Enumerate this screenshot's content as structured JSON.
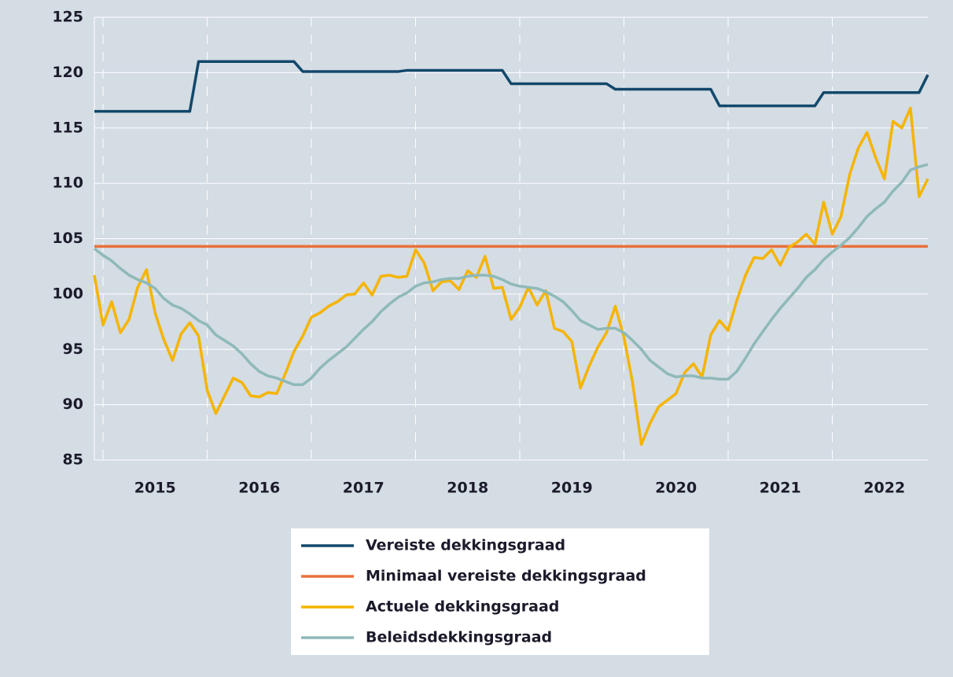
{
  "chart_data": {
    "type": "line",
    "x": [
      2014.917,
      2015,
      2015.083,
      2015.167,
      2015.25,
      2015.333,
      2015.417,
      2015.5,
      2015.583,
      2015.667,
      2015.75,
      2015.833,
      2015.917,
      2016,
      2016.083,
      2016.167,
      2016.25,
      2016.333,
      2016.417,
      2016.5,
      2016.583,
      2016.667,
      2016.75,
      2016.833,
      2016.917,
      2017,
      2017.083,
      2017.167,
      2017.25,
      2017.333,
      2017.417,
      2017.5,
      2017.583,
      2017.667,
      2017.75,
      2017.833,
      2017.917,
      2018,
      2018.083,
      2018.167,
      2018.25,
      2018.333,
      2018.417,
      2018.5,
      2018.583,
      2018.667,
      2018.75,
      2018.833,
      2018.917,
      2019,
      2019.083,
      2019.167,
      2019.25,
      2019.333,
      2019.417,
      2019.5,
      2019.583,
      2019.667,
      2019.75,
      2019.833,
      2019.917,
      2020,
      2020.083,
      2020.167,
      2020.25,
      2020.333,
      2020.417,
      2020.5,
      2020.583,
      2020.667,
      2020.75,
      2020.833,
      2020.917,
      2021,
      2021.083,
      2021.167,
      2021.25,
      2021.333,
      2021.417,
      2021.5,
      2021.583,
      2021.667,
      2021.75,
      2021.833,
      2021.917,
      2022,
      2022.083,
      2022.167,
      2022.25,
      2022.333,
      2022.417,
      2022.5,
      2022.583,
      2022.667,
      2022.75,
      2022.833,
      2022.917
    ],
    "series": [
      {
        "name": "Vereiste dekkingsgraad",
        "color": "#12486b",
        "values": [
          116.5,
          116.5,
          116.5,
          116.5,
          116.5,
          116.5,
          116.5,
          116.5,
          116.5,
          116.5,
          116.5,
          116.5,
          121,
          121,
          121,
          121,
          121,
          121,
          121,
          121,
          121,
          121,
          121,
          121,
          120.1,
          120.1,
          120.1,
          120.1,
          120.1,
          120.1,
          120.1,
          120.1,
          120.1,
          120.1,
          120.1,
          120.1,
          120.2,
          120.2,
          120.2,
          120.2,
          120.2,
          120.2,
          120.2,
          120.2,
          120.2,
          120.2,
          120.2,
          120.2,
          119,
          119,
          119,
          119,
          119,
          119,
          119,
          119,
          119,
          119,
          119,
          119,
          118.5,
          118.5,
          118.5,
          118.5,
          118.5,
          118.5,
          118.5,
          118.5,
          118.5,
          118.5,
          118.5,
          118.5,
          117,
          117,
          117,
          117,
          117,
          117,
          117,
          117,
          117,
          117,
          117,
          117,
          118.2,
          118.2,
          118.2,
          118.2,
          118.2,
          118.2,
          118.2,
          118.2,
          118.2,
          118.2,
          118.2,
          118.2,
          119.8
        ]
      },
      {
        "name": "Minimaal vereiste dekkingsgraad",
        "color": "#e8703a",
        "values": [
          104.3,
          104.3,
          104.3,
          104.3,
          104.3,
          104.3,
          104.3,
          104.3,
          104.3,
          104.3,
          104.3,
          104.3,
          104.3,
          104.3,
          104.3,
          104.3,
          104.3,
          104.3,
          104.3,
          104.3,
          104.3,
          104.3,
          104.3,
          104.3,
          104.3,
          104.3,
          104.3,
          104.3,
          104.3,
          104.3,
          104.3,
          104.3,
          104.3,
          104.3,
          104.3,
          104.3,
          104.3,
          104.3,
          104.3,
          104.3,
          104.3,
          104.3,
          104.3,
          104.3,
          104.3,
          104.3,
          104.3,
          104.3,
          104.3,
          104.3,
          104.3,
          104.3,
          104.3,
          104.3,
          104.3,
          104.3,
          104.3,
          104.3,
          104.3,
          104.3,
          104.3,
          104.3,
          104.3,
          104.3,
          104.3,
          104.3,
          104.3,
          104.3,
          104.3,
          104.3,
          104.3,
          104.3,
          104.3,
          104.3,
          104.3,
          104.3,
          104.3,
          104.3,
          104.3,
          104.3,
          104.3,
          104.3,
          104.3,
          104.3,
          104.3,
          104.3,
          104.3,
          104.3,
          104.3,
          104.3,
          104.3,
          104.3,
          104.3,
          104.3,
          104.3,
          104.3,
          104.3
        ]
      },
      {
        "name": "Actuele dekkingsgraad",
        "color": "#f5b400",
        "values": [
          101.7,
          97.2,
          99.3,
          96.5,
          97.7,
          100.6,
          102.2,
          98.3,
          95.9,
          94.0,
          96.4,
          97.4,
          96.2,
          91.3,
          89.2,
          90.8,
          92.4,
          92.0,
          90.8,
          90.7,
          91.1,
          91.0,
          92.8,
          94.8,
          96.2,
          97.9,
          98.3,
          98.9,
          99.3,
          99.9,
          100.0,
          101.0,
          99.9,
          101.6,
          101.7,
          101.5,
          101.6,
          104.0,
          102.8,
          100.3,
          101.1,
          101.2,
          100.4,
          102.1,
          101.5,
          103.4,
          100.5,
          100.6,
          97.7,
          98.8,
          100.6,
          99.0,
          100.3,
          96.9,
          96.6,
          95.7,
          91.5,
          93.5,
          95.2,
          96.5,
          98.9,
          96.1,
          92.0,
          86.4,
          88.3,
          89.8,
          90.4,
          91.0,
          92.9,
          93.7,
          92.5,
          96.3,
          97.6,
          96.7,
          99.4,
          101.7,
          103.3,
          103.2,
          104.0,
          102.6,
          104.2,
          104.7,
          105.4,
          104.5,
          108.3,
          105.4,
          107.0,
          110.8,
          113.2,
          114.6,
          112.3,
          110.4,
          115.6,
          115.0,
          116.8,
          108.8,
          110.4
        ]
      },
      {
        "name": "Beleidsdekkingsgraad",
        "color": "#8fb9b9",
        "values": [
          104.1,
          103.5,
          103.0,
          102.3,
          101.7,
          101.3,
          101.0,
          100.5,
          99.6,
          99.0,
          98.7,
          98.2,
          97.6,
          97.2,
          96.3,
          95.8,
          95.3,
          94.6,
          93.7,
          93.0,
          92.6,
          92.4,
          92.1,
          91.8,
          91.8,
          92.4,
          93.3,
          94.0,
          94.6,
          95.2,
          96.0,
          96.8,
          97.5,
          98.4,
          99.1,
          99.7,
          100.1,
          100.7,
          101.0,
          101.1,
          101.3,
          101.4,
          101.4,
          101.6,
          101.7,
          101.7,
          101.6,
          101.3,
          100.9,
          100.7,
          100.6,
          100.5,
          100.2,
          99.8,
          99.3,
          98.5,
          97.6,
          97.2,
          96.8,
          96.9,
          96.9,
          96.5,
          95.8,
          95.0,
          94.0,
          93.4,
          92.8,
          92.5,
          92.6,
          92.6,
          92.4,
          92.4,
          92.3,
          92.3,
          93.0,
          94.2,
          95.5,
          96.6,
          97.7,
          98.7,
          99.6,
          100.5,
          101.5,
          102.2,
          103.1,
          103.8,
          104.4,
          105.1,
          106.0,
          107.0,
          107.7,
          108.3,
          109.3,
          110.1,
          111.2,
          111.5,
          111.7
        ]
      }
    ],
    "xlim": [
      2014.917,
      2022.917
    ],
    "xticks": [
      {
        "value": 2015,
        "label": "2015"
      },
      {
        "value": 2016,
        "label": "2016"
      },
      {
        "value": 2017,
        "label": "2017"
      },
      {
        "value": 2018,
        "label": "2018"
      },
      {
        "value": 2019,
        "label": "2019"
      },
      {
        "value": 2020,
        "label": "2020"
      },
      {
        "value": 2021,
        "label": "2021"
      },
      {
        "value": 2022,
        "label": "2022"
      }
    ],
    "ylim": [
      85,
      125
    ],
    "yticks": [
      85,
      90,
      95,
      100,
      105,
      110,
      115,
      120,
      125
    ],
    "grid": true,
    "legend": "bottom"
  }
}
